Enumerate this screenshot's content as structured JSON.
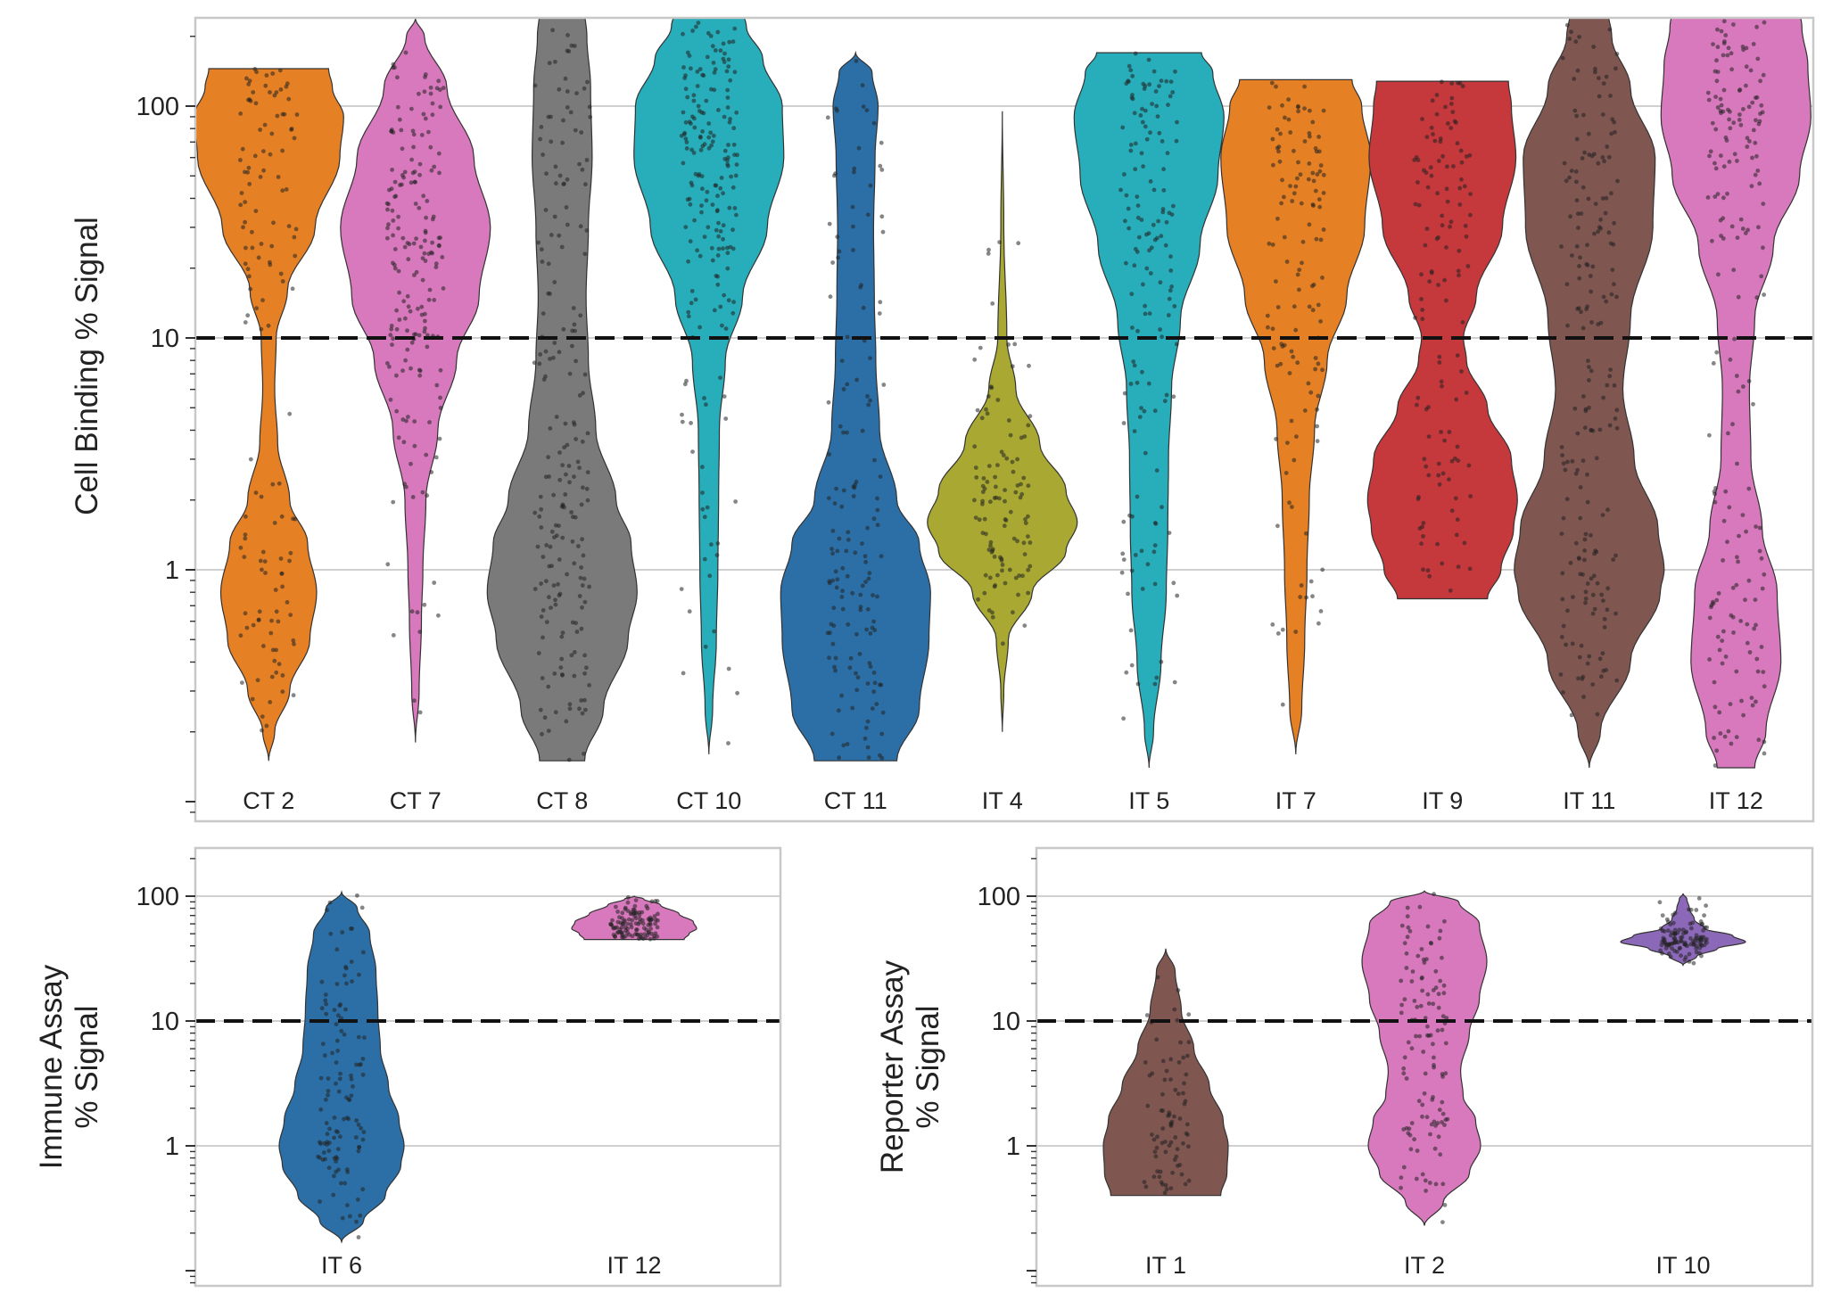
{
  "chart_data": [
    {
      "type": "violin",
      "ylabel": "Cell Binding % Signal",
      "yscale": "log",
      "ylim": [
        0.1,
        250
      ],
      "yticks": [
        "1",
        "10",
        "100"
      ],
      "threshold": 10,
      "grid": true,
      "categories": [
        "CT 2",
        "CT 7",
        "CT 8",
        "CT 10",
        "CT 11",
        "IT 4",
        "IT 5",
        "IT 7",
        "IT 9",
        "IT 11",
        "IT 12"
      ],
      "series": [
        {
          "category": "CT 2",
          "color": "#e68024",
          "min": 0.15,
          "max": 145,
          "profile": [
            [
              0.15,
              0.0
            ],
            [
              0.2,
              0.08
            ],
            [
              0.3,
              0.28
            ],
            [
              0.5,
              0.55
            ],
            [
              0.8,
              0.64
            ],
            [
              1.3,
              0.52
            ],
            [
              2,
              0.28
            ],
            [
              3.5,
              0.12
            ],
            [
              6,
              0.08
            ],
            [
              10,
              0.1
            ],
            [
              16,
              0.25
            ],
            [
              30,
              0.62
            ],
            [
              60,
              0.95
            ],
            [
              90,
              1.0
            ],
            [
              120,
              0.85
            ],
            [
              145,
              0.8
            ]
          ]
        },
        {
          "category": "CT 7",
          "color": "#d878bd",
          "min": 0.18,
          "max": 240,
          "profile": [
            [
              0.18,
              0.0
            ],
            [
              0.3,
              0.05
            ],
            [
              0.6,
              0.08
            ],
            [
              1,
              0.1
            ],
            [
              2,
              0.14
            ],
            [
              4,
              0.3
            ],
            [
              8,
              0.55
            ],
            [
              15,
              0.85
            ],
            [
              30,
              1.0
            ],
            [
              60,
              0.78
            ],
            [
              120,
              0.42
            ],
            [
              200,
              0.12
            ],
            [
              240,
              0.0
            ]
          ]
        },
        {
          "category": "CT 8",
          "color": "#7a7a7a",
          "min": 0.15,
          "max": 260,
          "profile": [
            [
              0.15,
              0.3
            ],
            [
              0.25,
              0.55
            ],
            [
              0.5,
              0.88
            ],
            [
              0.8,
              1.0
            ],
            [
              1.3,
              0.92
            ],
            [
              2,
              0.72
            ],
            [
              4,
              0.45
            ],
            [
              8,
              0.35
            ],
            [
              15,
              0.32
            ],
            [
              30,
              0.35
            ],
            [
              60,
              0.4
            ],
            [
              120,
              0.38
            ],
            [
              200,
              0.33
            ],
            [
              260,
              0.3
            ]
          ]
        },
        {
          "category": "CT 10",
          "color": "#27aeba",
          "min": 0.16,
          "max": 260,
          "profile": [
            [
              0.16,
              0.0
            ],
            [
              0.25,
              0.05
            ],
            [
              0.5,
              0.1
            ],
            [
              1,
              0.12
            ],
            [
              2,
              0.13
            ],
            [
              4,
              0.14
            ],
            [
              8,
              0.22
            ],
            [
              15,
              0.45
            ],
            [
              30,
              0.78
            ],
            [
              60,
              1.0
            ],
            [
              100,
              0.98
            ],
            [
              160,
              0.72
            ],
            [
              220,
              0.5
            ],
            [
              260,
              0.45
            ]
          ]
        },
        {
          "category": "CT 11",
          "color": "#2b6fa6",
          "min": 0.15,
          "max": 170,
          "profile": [
            [
              0.15,
              0.55
            ],
            [
              0.25,
              0.85
            ],
            [
              0.5,
              0.98
            ],
            [
              0.8,
              1.0
            ],
            [
              1.3,
              0.85
            ],
            [
              2,
              0.55
            ],
            [
              4,
              0.32
            ],
            [
              8,
              0.27
            ],
            [
              15,
              0.25
            ],
            [
              30,
              0.24
            ],
            [
              60,
              0.26
            ],
            [
              100,
              0.3
            ],
            [
              140,
              0.22
            ],
            [
              170,
              0.0
            ]
          ]
        },
        {
          "category": "IT 4",
          "color": "#a8a832",
          "min": 0.2,
          "max": 95,
          "profile": [
            [
              0.2,
              0.0
            ],
            [
              0.3,
              0.02
            ],
            [
              0.5,
              0.08
            ],
            [
              0.8,
              0.4
            ],
            [
              1.2,
              0.85
            ],
            [
              1.6,
              1.0
            ],
            [
              2.2,
              0.85
            ],
            [
              3.5,
              0.5
            ],
            [
              6,
              0.18
            ],
            [
              10,
              0.06
            ],
            [
              30,
              0.02
            ],
            [
              95,
              0.0
            ]
          ]
        },
        {
          "category": "IT 5",
          "color": "#27aeba",
          "min": 0.14,
          "max": 170,
          "profile": [
            [
              0.14,
              0.0
            ],
            [
              0.2,
              0.06
            ],
            [
              0.4,
              0.16
            ],
            [
              0.8,
              0.23
            ],
            [
              1.5,
              0.25
            ],
            [
              3,
              0.26
            ],
            [
              6,
              0.3
            ],
            [
              12,
              0.42
            ],
            [
              25,
              0.68
            ],
            [
              50,
              0.92
            ],
            [
              90,
              1.0
            ],
            [
              140,
              0.85
            ],
            [
              170,
              0.7
            ]
          ]
        },
        {
          "category": "IT 7",
          "color": "#e68024",
          "min": 0.16,
          "max": 130,
          "profile": [
            [
              0.16,
              0.0
            ],
            [
              0.25,
              0.08
            ],
            [
              0.5,
              0.12
            ],
            [
              1,
              0.15
            ],
            [
              2,
              0.18
            ],
            [
              4,
              0.25
            ],
            [
              8,
              0.42
            ],
            [
              15,
              0.68
            ],
            [
              30,
              0.92
            ],
            [
              60,
              1.0
            ],
            [
              100,
              0.88
            ],
            [
              130,
              0.75
            ]
          ]
        },
        {
          "category": "IT 9",
          "color": "#c5383c",
          "min": 0.75,
          "max": 128,
          "profile": [
            [
              0.75,
              0.6
            ],
            [
              1,
              0.78
            ],
            [
              1.5,
              0.95
            ],
            [
              2,
              1.0
            ],
            [
              3,
              0.92
            ],
            [
              5,
              0.6
            ],
            [
              8,
              0.32
            ],
            [
              10,
              0.28
            ],
            [
              15,
              0.45
            ],
            [
              30,
              0.8
            ],
            [
              60,
              0.98
            ],
            [
              100,
              0.92
            ],
            [
              128,
              0.88
            ]
          ]
        },
        {
          "category": "IT 11",
          "color": "#7f5650",
          "min": 0.14,
          "max": 260,
          "profile": [
            [
              0.14,
              0.0
            ],
            [
              0.2,
              0.15
            ],
            [
              0.4,
              0.55
            ],
            [
              0.8,
              0.95
            ],
            [
              1,
              1.0
            ],
            [
              1.5,
              0.92
            ],
            [
              3,
              0.6
            ],
            [
              6,
              0.45
            ],
            [
              12,
              0.55
            ],
            [
              30,
              0.85
            ],
            [
              60,
              0.88
            ],
            [
              120,
              0.55
            ],
            [
              200,
              0.3
            ],
            [
              260,
              0.25
            ]
          ]
        },
        {
          "category": "IT 12",
          "color": "#d878bd",
          "min": 0.14,
          "max": 260,
          "profile": [
            [
              0.14,
              0.25
            ],
            [
              0.2,
              0.4
            ],
            [
              0.4,
              0.6
            ],
            [
              0.8,
              0.55
            ],
            [
              1.5,
              0.35
            ],
            [
              3,
              0.2
            ],
            [
              6,
              0.18
            ],
            [
              12,
              0.25
            ],
            [
              25,
              0.5
            ],
            [
              50,
              0.85
            ],
            [
              90,
              1.0
            ],
            [
              150,
              0.96
            ],
            [
              220,
              0.88
            ],
            [
              260,
              0.85
            ]
          ]
        }
      ]
    },
    {
      "type": "violin",
      "ylabel": "Immune Assay % Signal",
      "ylabel_lines": [
        "Immune Assay",
        "% Signal"
      ],
      "yscale": "log",
      "ylim": [
        0.12,
        260
      ],
      "yticks": [
        "1",
        "10",
        "100"
      ],
      "threshold": 10,
      "grid": true,
      "categories": [
        "IT 6",
        "IT 12"
      ],
      "series": [
        {
          "category": "IT 6",
          "color": "#2b6fa6",
          "min": 0.17,
          "max": 108,
          "profile": [
            [
              0.17,
              0.0
            ],
            [
              0.25,
              0.35
            ],
            [
              0.4,
              0.7
            ],
            [
              0.7,
              0.95
            ],
            [
              1,
              1.0
            ],
            [
              1.6,
              0.92
            ],
            [
              3,
              0.75
            ],
            [
              6,
              0.62
            ],
            [
              12,
              0.58
            ],
            [
              25,
              0.55
            ],
            [
              50,
              0.45
            ],
            [
              80,
              0.25
            ],
            [
              108,
              0.0
            ]
          ]
        },
        {
          "category": "IT 12",
          "color": "#d878bd",
          "min": 45,
          "max": 100,
          "profile": [
            [
              45,
              0.8
            ],
            [
              50,
              0.88
            ],
            [
              55,
              1.0
            ],
            [
              62,
              0.95
            ],
            [
              72,
              0.72
            ],
            [
              85,
              0.42
            ],
            [
              95,
              0.15
            ],
            [
              100,
              0.0
            ]
          ]
        }
      ]
    },
    {
      "type": "violin",
      "ylabel": "Reporter Assay % Signal",
      "ylabel_lines": [
        "Reporter Assay",
        "% Signal"
      ],
      "yscale": "log",
      "ylim": [
        0.12,
        260
      ],
      "yticks": [
        "1",
        "10",
        "100"
      ],
      "threshold": 10,
      "grid": true,
      "categories": [
        "IT 1",
        "IT 2",
        "IT 10"
      ],
      "series": [
        {
          "category": "IT 1",
          "color": "#7f5650",
          "min": 0.4,
          "max": 38,
          "profile": [
            [
              0.4,
              0.88
            ],
            [
              0.6,
              0.98
            ],
            [
              1,
              1.0
            ],
            [
              1.6,
              0.92
            ],
            [
              3,
              0.7
            ],
            [
              6,
              0.45
            ],
            [
              12,
              0.25
            ],
            [
              25,
              0.15
            ],
            [
              38,
              0.0
            ]
          ]
        },
        {
          "category": "IT 2",
          "color": "#d878bd",
          "min": 0.23,
          "max": 110,
          "profile": [
            [
              0.23,
              0.0
            ],
            [
              0.35,
              0.3
            ],
            [
              0.6,
              0.72
            ],
            [
              1,
              0.9
            ],
            [
              1.6,
              0.82
            ],
            [
              2.5,
              0.62
            ],
            [
              4,
              0.58
            ],
            [
              8,
              0.72
            ],
            [
              15,
              0.88
            ],
            [
              30,
              1.0
            ],
            [
              60,
              0.88
            ],
            [
              90,
              0.55
            ],
            [
              110,
              0.0
            ]
          ]
        },
        {
          "category": "IT 10",
          "color": "#8c68b8",
          "min": 28,
          "max": 105,
          "profile": [
            [
              28,
              0.0
            ],
            [
              33,
              0.22
            ],
            [
              38,
              0.55
            ],
            [
              43,
              1.0
            ],
            [
              48,
              0.8
            ],
            [
              55,
              0.35
            ],
            [
              65,
              0.18
            ],
            [
              80,
              0.1
            ],
            [
              95,
              0.06
            ],
            [
              105,
              0.0
            ]
          ]
        }
      ]
    }
  ]
}
